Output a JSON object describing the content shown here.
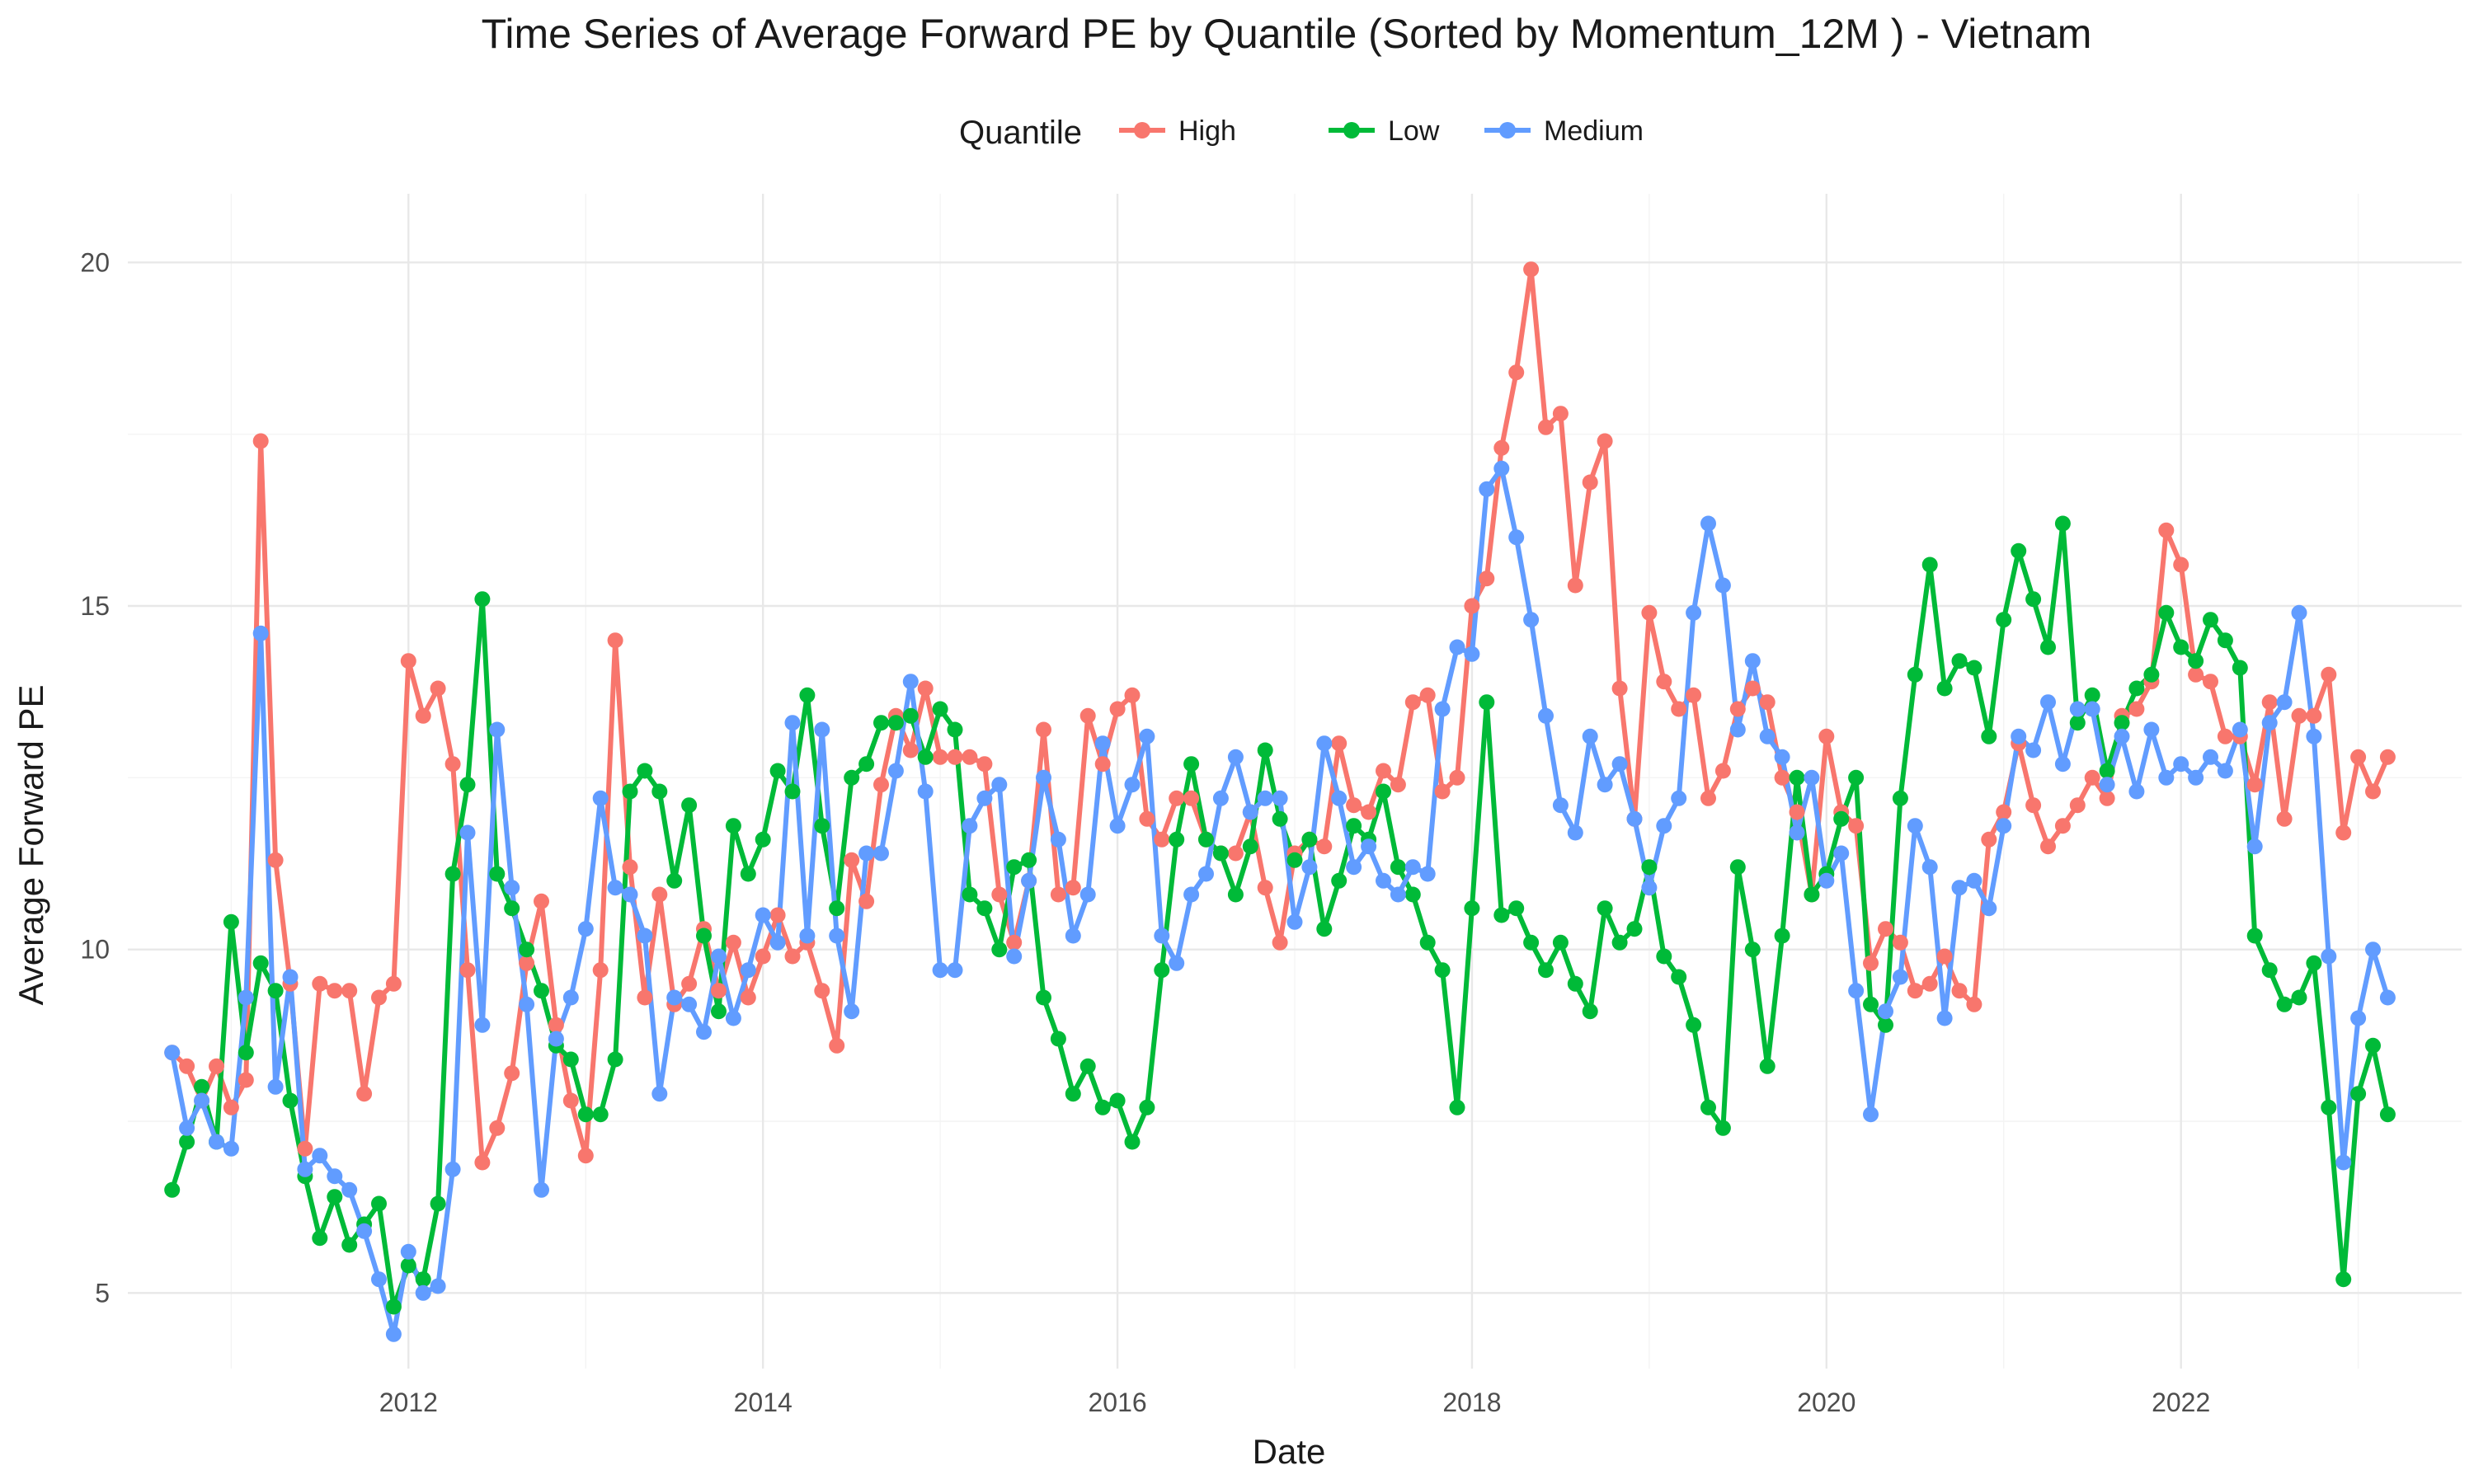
{
  "chart_data": {
    "type": "line",
    "title": "Time Series of Average Forward PE by Quantile (Sorted by Momentum_12M ) - Vietnam",
    "xlabel": "Date",
    "ylabel": "Average Forward PE",
    "x_axis": {
      "type": "date",
      "range": [
        "2010-06-01",
        "2023-08-01"
      ],
      "ticks": [
        2012,
        2014,
        2016,
        2018,
        2020,
        2022
      ]
    },
    "y_axis": {
      "range": [
        3.9,
        21.0
      ],
      "ticks": [
        5,
        10,
        15,
        20
      ]
    },
    "grid": true,
    "legend": {
      "title": "Quantile",
      "position": "top",
      "entries": [
        "High",
        "Low",
        "Medium"
      ]
    },
    "markers": true,
    "x_start": "2010-09",
    "x_frequency": "monthly",
    "series": [
      {
        "name": "High",
        "color": "#F8766D",
        "values": [
          8.5,
          8.3,
          7.8,
          8.3,
          7.7,
          8.1,
          17.4,
          11.3,
          9.5,
          7.1,
          9.5,
          9.4,
          9.4,
          7.9,
          9.3,
          9.5,
          14.2,
          13.4,
          13.8,
          12.7,
          9.7,
          6.9,
          7.4,
          8.2,
          9.8,
          10.7,
          8.9,
          7.8,
          7.0,
          9.7,
          14.5,
          11.2,
          9.3,
          10.8,
          9.2,
          9.5,
          10.3,
          9.4,
          10.1,
          9.3,
          9.9,
          10.5,
          9.9,
          10.1,
          9.4,
          8.6,
          11.3,
          10.7,
          12.4,
          13.4,
          12.9,
          13.8,
          12.8,
          12.8,
          12.8,
          12.7,
          10.8,
          10.1,
          11.0,
          13.2,
          10.8,
          10.9,
          13.4,
          12.7,
          13.5,
          13.7,
          11.9,
          11.6,
          12.2,
          12.2,
          11.6,
          11.4,
          11.4,
          12.0,
          10.9,
          10.1,
          11.4,
          11.6,
          11.5,
          13.0,
          12.1,
          12.0,
          12.6,
          12.4,
          13.6,
          13.7,
          12.3,
          12.5,
          15.0,
          15.4,
          17.3,
          18.4,
          19.9,
          17.6,
          17.8,
          15.3,
          16.8,
          17.4,
          13.8,
          11.9,
          14.9,
          13.9,
          13.5,
          13.7,
          12.2,
          12.6,
          13.5,
          13.8,
          13.6,
          12.5,
          12.0,
          10.8,
          13.1,
          12.0,
          11.8,
          9.8,
          10.3,
          10.1,
          9.4,
          9.5,
          9.9,
          9.4,
          9.2,
          11.6,
          12.0,
          13.0,
          12.1,
          11.5,
          11.8,
          12.1,
          12.5,
          12.2,
          13.4,
          13.5,
          13.9,
          16.1,
          15.6,
          14.0,
          13.9,
          13.1,
          13.1,
          12.4,
          13.6,
          11.9,
          13.4,
          13.4,
          14.0,
          11.7,
          12.8,
          12.3,
          12.8
        ]
      },
      {
        "name": "Low",
        "color": "#00BA38",
        "values": [
          6.5,
          7.2,
          8.0,
          7.2,
          10.4,
          8.5,
          9.8,
          9.4,
          7.8,
          6.7,
          5.8,
          6.4,
          5.7,
          6.0,
          6.3,
          4.8,
          5.4,
          5.2,
          6.3,
          11.1,
          12.4,
          15.1,
          11.1,
          10.6,
          10.0,
          9.4,
          8.6,
          8.4,
          7.6,
          7.6,
          8.4,
          12.3,
          12.6,
          12.3,
          11.0,
          12.1,
          10.2,
          9.1,
          11.8,
          11.1,
          11.6,
          12.6,
          12.3,
          13.7,
          11.8,
          10.6,
          12.5,
          12.7,
          13.3,
          13.3,
          13.4,
          12.8,
          13.5,
          13.2,
          10.8,
          10.6,
          10.0,
          11.2,
          11.3,
          9.3,
          8.7,
          7.9,
          8.3,
          7.7,
          7.8,
          7.2,
          7.7,
          9.7,
          11.6,
          12.7,
          11.6,
          11.4,
          10.8,
          11.5,
          12.9,
          11.9,
          11.3,
          11.6,
          10.3,
          11.0,
          11.8,
          11.6,
          12.3,
          11.2,
          10.8,
          10.1,
          9.7,
          7.7,
          10.6,
          13.6,
          10.5,
          10.6,
          10.1,
          9.7,
          10.1,
          9.5,
          9.1,
          10.6,
          10.1,
          10.3,
          11.2,
          9.9,
          9.6,
          8.9,
          7.7,
          7.4,
          11.2,
          10.0,
          8.3,
          10.2,
          12.5,
          10.8,
          11.1,
          11.9,
          12.5,
          9.2,
          8.9,
          12.2,
          14.0,
          15.6,
          13.8,
          14.2,
          14.1,
          13.1,
          14.8,
          15.8,
          15.1,
          14.4,
          16.2,
          13.3,
          13.7,
          12.6,
          13.3,
          13.8,
          14.0,
          14.9,
          14.4,
          14.2,
          14.8,
          14.5,
          14.1,
          10.2,
          9.7,
          9.2,
          9.3,
          9.8,
          7.7,
          5.2,
          7.9,
          8.6,
          7.6
        ]
      },
      {
        "name": "Medium",
        "color": "#619CFF",
        "values": [
          8.5,
          7.4,
          7.8,
          7.2,
          7.1,
          9.3,
          14.6,
          8.0,
          9.6,
          6.8,
          7.0,
          6.7,
          6.5,
          5.9,
          5.2,
          4.4,
          5.6,
          5.0,
          5.1,
          6.8,
          11.7,
          8.9,
          13.2,
          10.9,
          9.2,
          6.5,
          8.7,
          9.3,
          10.3,
          12.2,
          10.9,
          10.8,
          10.2,
          7.9,
          9.3,
          9.2,
          8.8,
          9.9,
          9.0,
          9.7,
          10.5,
          10.1,
          13.3,
          10.2,
          13.2,
          10.2,
          9.1,
          11.4,
          11.4,
          12.6,
          13.9,
          12.3,
          9.7,
          9.7,
          11.8,
          12.2,
          12.4,
          9.9,
          11.0,
          12.5,
          11.6,
          10.2,
          10.8,
          13.0,
          11.8,
          12.4,
          13.1,
          10.2,
          9.8,
          10.8,
          11.1,
          12.2,
          12.8,
          12.0,
          12.2,
          12.2,
          10.4,
          11.2,
          13.0,
          12.2,
          11.2,
          11.5,
          11.0,
          10.8,
          11.2,
          11.1,
          13.5,
          14.4,
          14.3,
          16.7,
          17.0,
          16.0,
          14.8,
          13.4,
          12.1,
          11.7,
          13.1,
          12.4,
          12.7,
          11.9,
          10.9,
          11.8,
          12.2,
          14.9,
          16.2,
          15.3,
          13.2,
          14.2,
          13.1,
          12.8,
          11.7,
          12.5,
          11.0,
          11.4,
          9.4,
          7.6,
          9.1,
          9.6,
          11.8,
          11.2,
          9.0,
          10.9,
          11.0,
          10.6,
          11.8,
          13.1,
          12.9,
          13.6,
          12.7,
          13.5,
          13.5,
          12.4,
          13.1,
          12.3,
          13.2,
          12.5,
          12.7,
          12.5,
          12.8,
          12.6,
          13.2,
          11.5,
          13.3,
          13.6,
          14.9,
          13.1,
          9.9,
          6.9,
          9.0,
          10.0,
          9.3
        ]
      }
    ]
  }
}
